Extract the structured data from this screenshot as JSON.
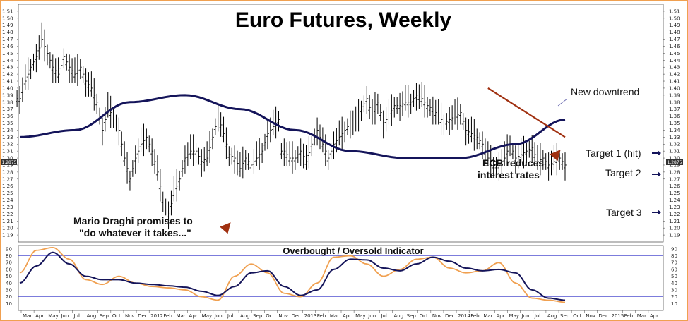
{
  "chart_data": {
    "type": "line",
    "title": "Euro Futures, Weekly",
    "price_axis": {
      "ylim": [
        1.18,
        1.52
      ],
      "ticks": [
        "1.19",
        "1.20",
        "1.21",
        "1.22",
        "1.23",
        "1.24",
        "1.25",
        "1.26",
        "1.27",
        "1.28",
        "1.29",
        "1.30",
        "1.31",
        "1.32",
        "1.33",
        "1.34",
        "1.35",
        "1.36",
        "1.37",
        "1.38",
        "1.39",
        "1.40",
        "1.41",
        "1.42",
        "1.43",
        "1.44",
        "1.45",
        "1.46",
        "1.47",
        "1.48",
        "1.49",
        "1.50",
        "1.51"
      ],
      "current_price_label": "1.2875"
    },
    "x_axis_labels": [
      "Mar",
      "Apr",
      "May",
      "Jun",
      "Jul",
      "Aug",
      "Sep",
      "Oct",
      "Nov",
      "Dec",
      "2012",
      "Feb",
      "Mar",
      "Apr",
      "May",
      "Jun",
      "Jul",
      "Aug",
      "Sep",
      "Oct",
      "Nov",
      "Dec",
      "2013",
      "Feb",
      "Mar",
      "Apr",
      "May",
      "Jun",
      "Jul",
      "Aug",
      "Sep",
      "Oct",
      "Nov",
      "Dec",
      "2014",
      "Feb",
      "Mar",
      "Apr",
      "May",
      "Jun",
      "Jul",
      "Aug",
      "Sep",
      "Oct",
      "Nov",
      "Dec",
      "2015",
      "Feb",
      "Mar",
      "Apr"
    ],
    "price_series": [
      {
        "name": "Weekly price bars (approx. weekly close)",
        "color": "#000000",
        "x": [
          0,
          1,
          2,
          3,
          4,
          5,
          6,
          7,
          8,
          9,
          10,
          11,
          12,
          13,
          14,
          15,
          16,
          17,
          18,
          19,
          20,
          21,
          22,
          23,
          24,
          25,
          26,
          27,
          28,
          29,
          30,
          31,
          32,
          33,
          34,
          35,
          36,
          37,
          38,
          39,
          40,
          41,
          42,
          43,
          44,
          45,
          46,
          47
        ],
        "values": [
          1.385,
          1.41,
          1.43,
          1.445,
          1.47,
          1.45,
          1.43,
          1.42,
          1.445,
          1.43,
          1.42,
          1.43,
          1.41,
          1.4,
          1.38,
          1.34,
          1.37,
          1.36,
          1.34,
          1.3,
          1.27,
          1.3,
          1.32,
          1.33,
          1.31,
          1.28,
          1.24,
          1.22,
          1.25,
          1.27,
          1.3,
          1.31,
          1.31,
          1.295,
          1.3,
          1.33,
          1.36,
          1.335,
          1.305,
          1.3,
          1.285,
          1.3,
          1.29,
          1.3,
          1.31,
          1.335,
          1.345,
          1.355
        ]
      },
      {
        "name": "Weekly price bars (approx. weekly close, cont.)",
        "color": "#000000",
        "x": [
          48,
          49,
          50,
          51,
          52,
          53,
          54,
          55,
          56,
          57,
          58,
          59,
          60,
          61,
          62,
          63,
          64,
          65,
          66,
          67,
          68,
          69,
          70,
          71,
          72,
          73,
          74,
          75,
          76,
          77,
          78,
          79,
          80,
          81,
          82,
          83,
          84,
          85,
          86,
          87,
          88,
          89,
          90,
          91,
          92,
          93,
          94,
          95,
          96,
          97,
          98,
          99
        ],
        "values": [
          1.31,
          1.3,
          1.3,
          1.31,
          1.295,
          1.32,
          1.34,
          1.32,
          1.3,
          1.32,
          1.33,
          1.34,
          1.35,
          1.35,
          1.37,
          1.385,
          1.36,
          1.38,
          1.35,
          1.36,
          1.375,
          1.375,
          1.38,
          1.38,
          1.39,
          1.385,
          1.375,
          1.37,
          1.36,
          1.35,
          1.355,
          1.36,
          1.365,
          1.34,
          1.335,
          1.33,
          1.32,
          1.3,
          1.29,
          1.29,
          1.3,
          1.32,
          1.3,
          1.305,
          1.31,
          1.315,
          1.295,
          1.3,
          1.29,
          1.295,
          1.3,
          1.29
        ]
      },
      {
        "name": "Moving average",
        "color": "#14145a",
        "x": [
          0,
          10,
          20,
          30,
          40,
          50,
          60,
          70,
          80,
          90,
          99
        ],
        "values": [
          1.33,
          1.34,
          1.38,
          1.39,
          1.37,
          1.34,
          1.31,
          1.3,
          1.3,
          1.32,
          1.355
        ]
      },
      {
        "name": "New downtrend",
        "color": "#a03010",
        "x": [
          85,
          99
        ],
        "values": [
          1.4,
          1.33
        ]
      }
    ],
    "annotations": [
      {
        "text": "Mario Draghi promises to",
        "x": 20,
        "y": 1.23
      },
      {
        "text": "\"do whatever it takes...\"",
        "x": 20,
        "y": 1.2
      },
      {
        "text": "ECB reduces",
        "x": 77,
        "y": 1.3
      },
      {
        "text": "interest rates",
        "x": 77,
        "y": 1.28
      },
      {
        "text": "New downtrend",
        "x": 92,
        "y": 1.39
      },
      {
        "text": "Target 1 (hit)",
        "x": 103,
        "y": 1.305
      },
      {
        "text": "Target 2",
        "x": 103,
        "y": 1.275
      },
      {
        "text": "Target 3",
        "x": 103,
        "y": 1.22
      }
    ],
    "indicator": {
      "title": "Overbought / Oversold Indicator",
      "ylim": [
        0,
        95
      ],
      "ticks": [
        "10",
        "20",
        "30",
        "40",
        "50",
        "60",
        "70",
        "80",
        "90"
      ],
      "levels": [
        20,
        80
      ],
      "series": [
        {
          "name": "Fast line",
          "color": "#f0a050",
          "x": [
            0,
            3,
            6,
            9,
            12,
            15,
            18,
            21,
            24,
            27,
            30,
            33,
            36,
            39,
            42,
            45,
            48,
            51,
            54,
            57,
            60,
            63,
            66,
            69,
            72,
            75,
            78,
            81,
            84,
            87,
            90,
            93,
            96,
            99
          ],
          "values": [
            55,
            88,
            92,
            75,
            45,
            38,
            50,
            40,
            35,
            33,
            30,
            20,
            15,
            50,
            68,
            55,
            25,
            20,
            40,
            78,
            80,
            68,
            50,
            60,
            75,
            78,
            62,
            55,
            58,
            70,
            40,
            18,
            15,
            12
          ]
        },
        {
          "name": "Slow line",
          "color": "#14145a",
          "x": [
            0,
            3,
            6,
            9,
            12,
            15,
            18,
            21,
            24,
            27,
            30,
            33,
            36,
            39,
            42,
            45,
            48,
            51,
            54,
            57,
            60,
            63,
            66,
            69,
            72,
            75,
            78,
            81,
            84,
            87,
            90,
            93,
            96,
            99
          ],
          "values": [
            40,
            65,
            85,
            68,
            50,
            45,
            45,
            40,
            38,
            36,
            34,
            28,
            22,
            35,
            55,
            58,
            35,
            22,
            30,
            60,
            75,
            74,
            62,
            58,
            68,
            78,
            72,
            62,
            58,
            60,
            55,
            30,
            18,
            15
          ]
        }
      ]
    }
  }
}
